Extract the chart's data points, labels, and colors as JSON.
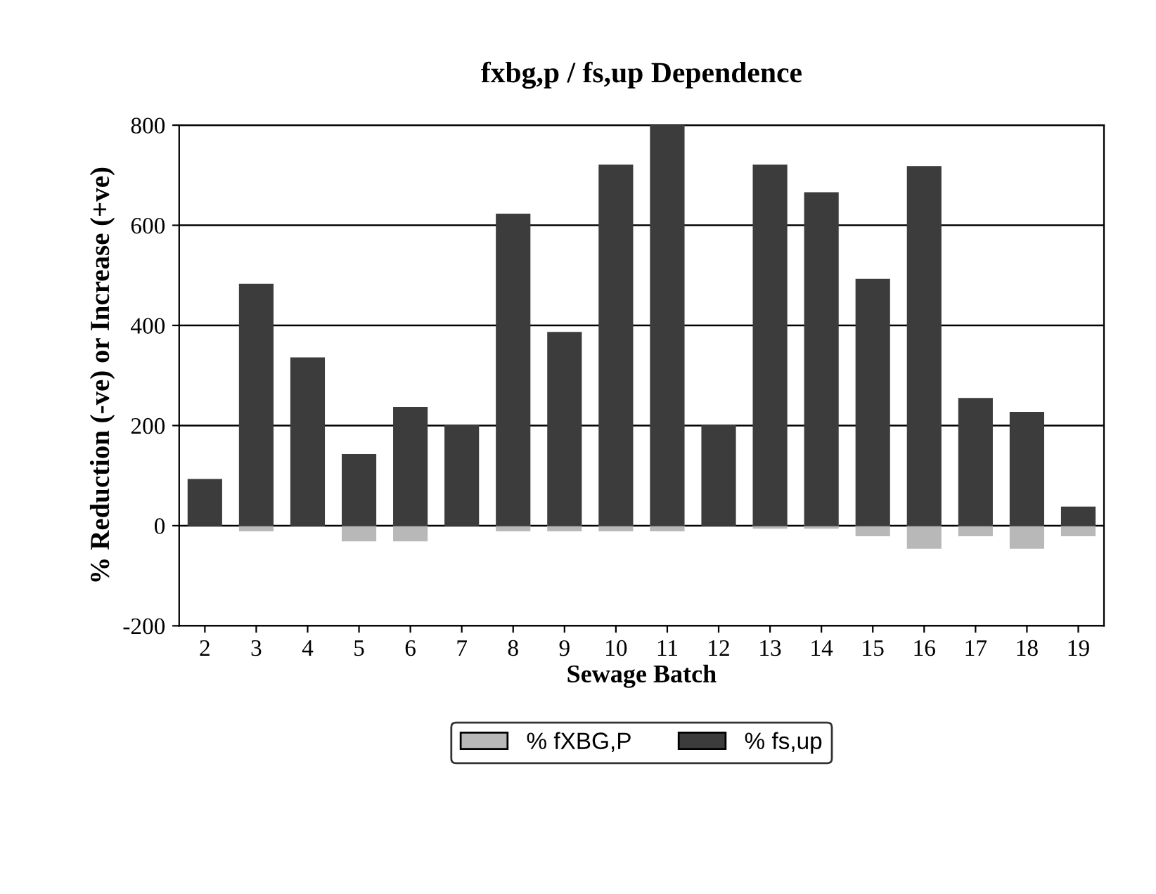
{
  "chart_data": {
    "type": "bar",
    "title": "fxbg,p / fs,up Dependence",
    "xlabel": "Sewage Batch",
    "ylabel": "% Reduction (-ve) or Increase (+ve)",
    "categories": [
      "2",
      "3",
      "4",
      "5",
      "6",
      "7",
      "8",
      "9",
      "10",
      "11",
      "12",
      "13",
      "14",
      "15",
      "16",
      "17",
      "18",
      "19"
    ],
    "series": [
      {
        "name": "% fXBG,P",
        "color": "#b8b8b8",
        "values": [
          null,
          -10,
          null,
          -30,
          -30,
          null,
          -10,
          -10,
          -10,
          -10,
          null,
          -5,
          -5,
          -20,
          -45,
          -20,
          -45,
          -20
        ]
      },
      {
        "name": "% fs,up",
        "color": "#3c3c3c",
        "values": [
          92,
          482,
          335,
          142,
          236,
          200,
          622,
          386,
          720,
          800,
          200,
          720,
          665,
          492,
          717,
          254,
          226,
          37
        ]
      }
    ],
    "ylim": [
      -200,
      800
    ],
    "yticks": [
      -200,
      0,
      200,
      400,
      600,
      800
    ],
    "stacked": true,
    "grid": "y",
    "legend": "bottom"
  }
}
